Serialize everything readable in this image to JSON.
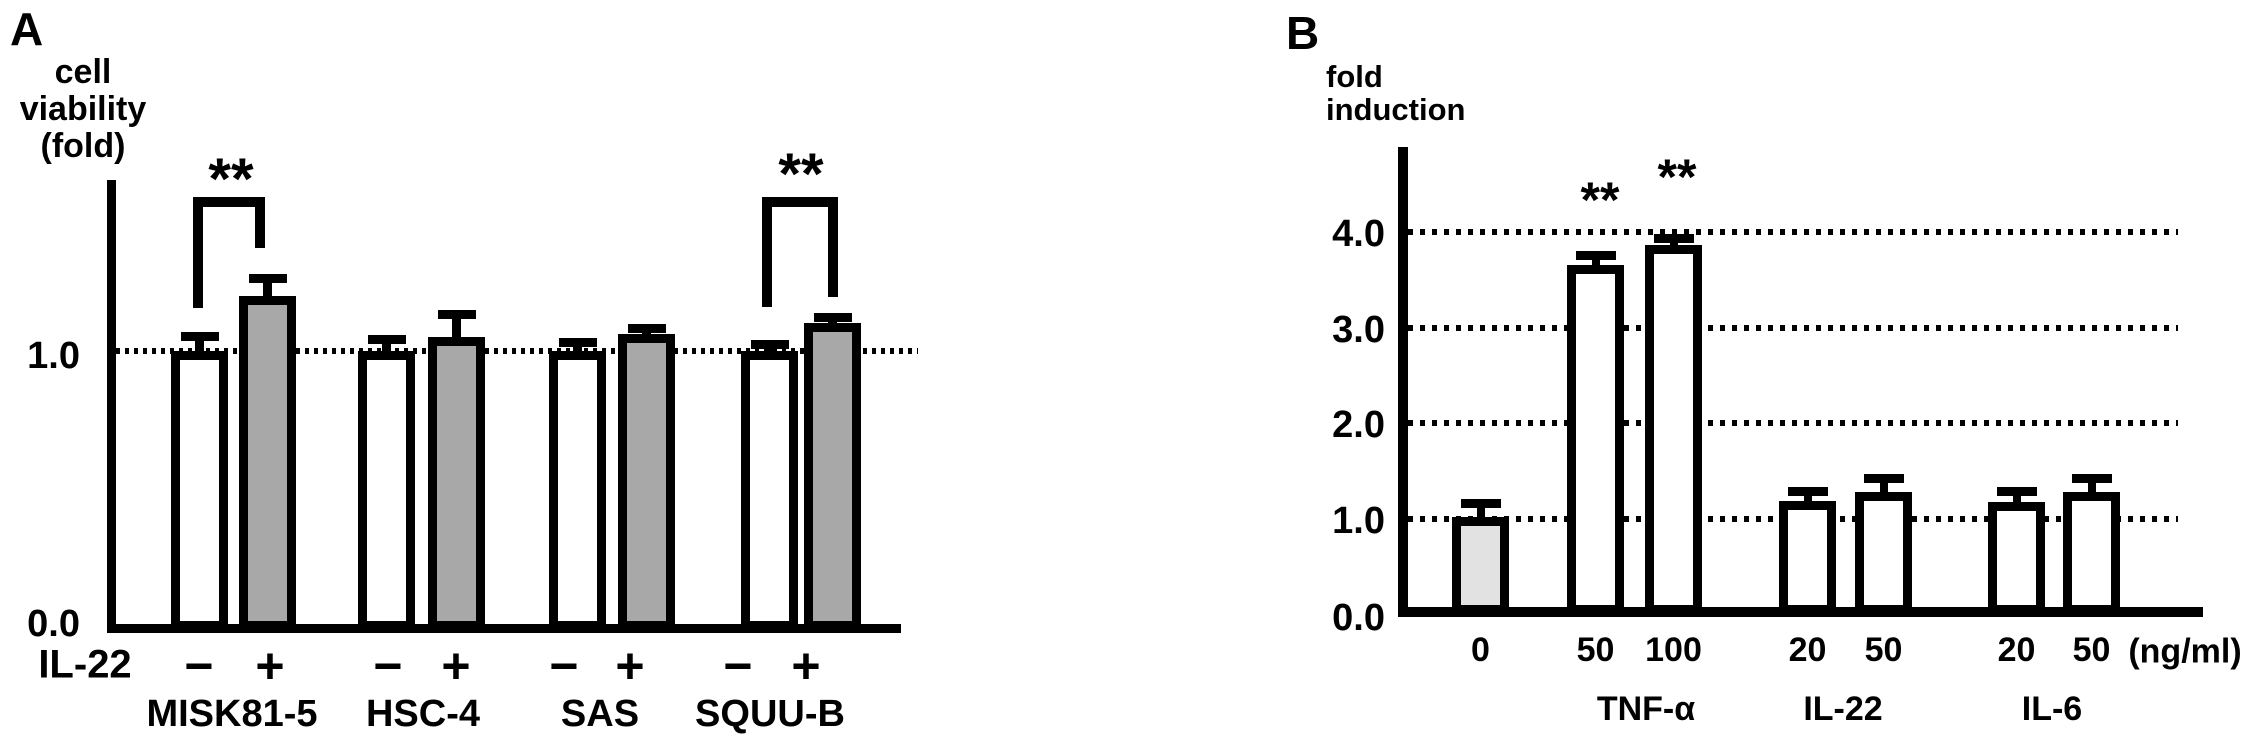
{
  "panel_a": {
    "label": "A",
    "y_axis_title_lines": [
      "cell",
      "viability",
      "(fold)"
    ],
    "y_tick_labels": [
      "1.0",
      "0.0"
    ],
    "condition_row_label": "IL-22",
    "significance_marker": "**"
  },
  "panel_b": {
    "label": "B",
    "y_axis_title_lines": [
      "fold",
      "induction"
    ],
    "y_tick_labels": [
      "4.0",
      "3.0",
      "2.0",
      "1.0",
      "0.0"
    ],
    "unit_label": "(ng/ml)",
    "significance_marker": "**"
  },
  "colors": {
    "ink": "#000000",
    "panel_a_treated_bar_fill": "#a8a8a8",
    "panel_b_control_bar_fill": "#e2e2e2",
    "untreated_bar_fill": "#ffffff"
  },
  "chart_data": [
    {
      "type": "bar",
      "panel": "A",
      "ylabel": "cell viability (fold)",
      "ylim": [
        0,
        1.62
      ],
      "yticks": [
        1.0,
        0.0
      ],
      "ytick_labels": [
        "1.0",
        "0.0"
      ],
      "gridlines": [
        1.0
      ],
      "grid_style": "dotted",
      "legend_position": "none",
      "categories": [
        "MISK81-5",
        "HSC-4",
        "SAS",
        "SQUU-B"
      ],
      "condition_row_label": "IL-22",
      "conditions": [
        "-",
        "+"
      ],
      "series": [
        {
          "name": "IL-22 -",
          "fill": "#ffffff",
          "values": [
            1.0,
            1.0,
            1.0,
            1.0
          ],
          "errors": [
            0.05,
            0.04,
            0.03,
            0.02
          ]
        },
        {
          "name": "IL-22 +",
          "fill": "#a8a8a8",
          "values": [
            1.2,
            1.05,
            1.06,
            1.1
          ],
          "errors": [
            0.06,
            0.08,
            0.02,
            0.02
          ]
        }
      ],
      "significance": [
        {
          "category": "MISK81-5",
          "between": [
            "-",
            "+"
          ],
          "label": "**"
        },
        {
          "category": "SQUU-B",
          "between": [
            "-",
            "+"
          ],
          "label": "**"
        }
      ]
    },
    {
      "type": "bar",
      "panel": "B",
      "ylabel": "fold induction",
      "ylim": [
        0,
        4.9
      ],
      "yticks": [
        4.0,
        3.0,
        2.0,
        1.0,
        0.0
      ],
      "ytick_labels": [
        "4.0",
        "3.0",
        "2.0",
        "1.0",
        "0.0"
      ],
      "gridlines": [
        1.0,
        2.0,
        3.0,
        4.0
      ],
      "grid_style": "dotted",
      "legend_position": "none",
      "x_unit": "(ng/ml)",
      "categories": [
        "0",
        "50",
        "100",
        "20",
        "50",
        "20",
        "50"
      ],
      "groups": [
        {
          "label": "TNF-α",
          "category_indexes": [
            1,
            2
          ]
        },
        {
          "label": "IL-22",
          "category_indexes": [
            3,
            4
          ]
        },
        {
          "label": "IL-6",
          "category_indexes": [
            5,
            6
          ]
        }
      ],
      "values": [
        1.02,
        3.65,
        3.86,
        1.18,
        1.28,
        1.17,
        1.28
      ],
      "errors": [
        0.13,
        0.1,
        0.07,
        0.1,
        0.13,
        0.11,
        0.13
      ],
      "fills": [
        "#e2e2e2",
        "#ffffff",
        "#ffffff",
        "#ffffff",
        "#ffffff",
        "#ffffff",
        "#ffffff"
      ],
      "significance": [
        {
          "category_index": 1,
          "label": "**"
        },
        {
          "category_index": 2,
          "label": "**"
        }
      ]
    }
  ]
}
